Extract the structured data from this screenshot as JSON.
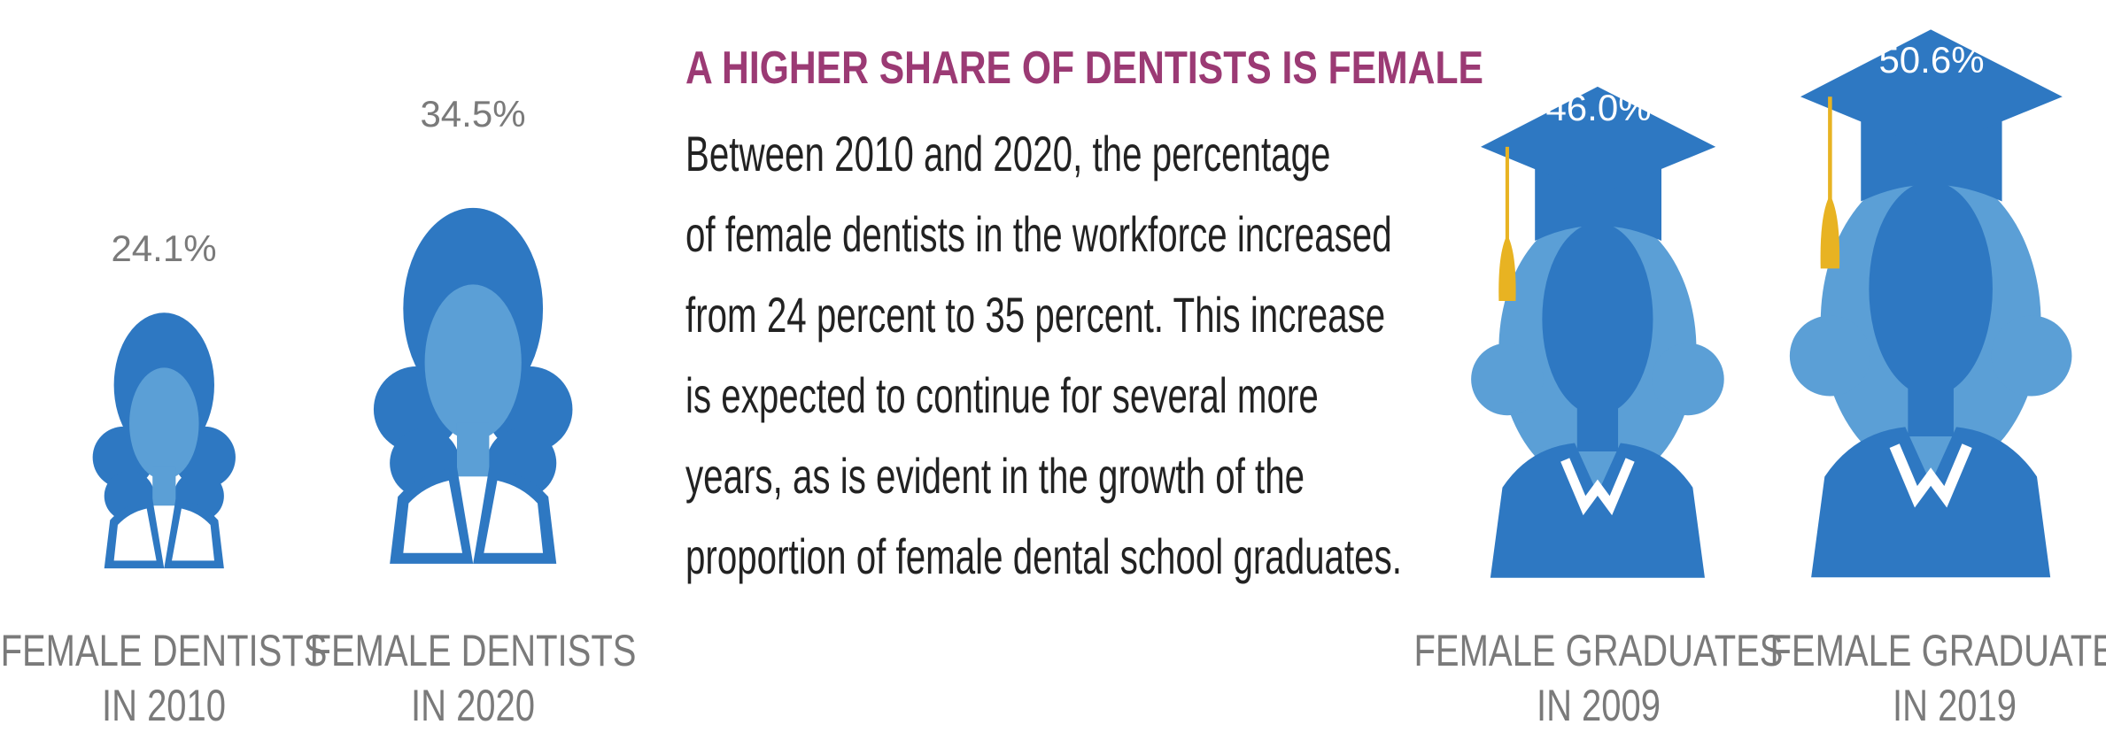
{
  "title": "A HIGHER SHARE OF DENTISTS IS FEMALE",
  "body": [
    "Between 2010 and 2020, the percentage",
    "of female dentists in the workforce increased",
    "from 24 percent to 35 percent. This increase",
    "is expected to continue for several more",
    "years, as is evident in the growth of the",
    "proportion of female dental school graduates."
  ],
  "figures": [
    {
      "value_label": "24.1%",
      "label": [
        "FEMALE DENTISTS",
        "IN 2010"
      ]
    },
    {
      "value_label": "34.5%",
      "label": [
        "FEMALE DENTISTS",
        "IN 2020"
      ]
    },
    {
      "value_label": "46.0%",
      "label": [
        "FEMALE GRADUATES",
        "IN 2009"
      ]
    },
    {
      "value_label": "50.6%",
      "label": [
        "FEMALE GRADUATES",
        "IN 2019"
      ]
    }
  ]
}
